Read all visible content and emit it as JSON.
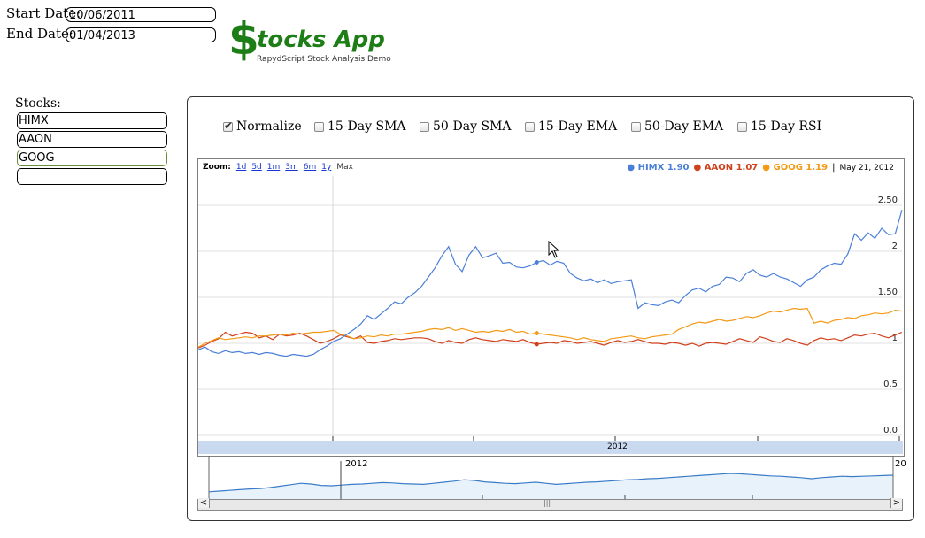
{
  "dates": {
    "start_label": "Start Date:",
    "start_value": "10/06/2011",
    "end_label": "End Date:",
    "end_value": "01/04/2013"
  },
  "logo": {
    "dollar": "$",
    "title": "tocks App",
    "subtitle": "RapydScript Stock Analysis Demo"
  },
  "stocks": {
    "label": "Stocks:",
    "inputs": [
      "HIMX",
      "AAON",
      "GOOG",
      ""
    ]
  },
  "options": [
    {
      "label": "Normalize",
      "checked": true
    },
    {
      "label": "15-Day SMA",
      "checked": false
    },
    {
      "label": "50-Day SMA",
      "checked": false
    },
    {
      "label": "15-Day EMA",
      "checked": false
    },
    {
      "label": "50-Day EMA",
      "checked": false
    },
    {
      "label": "15-Day RSI",
      "checked": false
    }
  ],
  "zoom": {
    "label": "Zoom:",
    "links": [
      "1d",
      "5d",
      "1m",
      "3m",
      "6m",
      "1y"
    ],
    "active": "Max"
  },
  "legend": {
    "items": [
      {
        "name": "HIMX",
        "value": "1.90",
        "color": "#4a7fd8"
      },
      {
        "name": "AAON",
        "value": "1.07",
        "color": "#d0401b"
      },
      {
        "name": "GOOG",
        "value": "1.19",
        "color": "#f29a15"
      }
    ],
    "separator": "|",
    "date": "May 21, 2012"
  },
  "range_bar": {
    "year_label": "2012",
    "nav_year_label": "2012",
    "nav_year_label_right": "20",
    "scroll_left": "<",
    "scroll_right": ">",
    "grip": "|||"
  },
  "chart_data": {
    "type": "line",
    "y_ticks": [
      "2.50",
      "2",
      "1.50",
      "1",
      "0.5",
      "0.0"
    ],
    "ylim": [
      0,
      2.5
    ],
    "x_label": "2012",
    "series": [
      {
        "name": "HIMX",
        "color": "#4a7fd8",
        "values": [
          0.93,
          0.96,
          0.91,
          0.89,
          0.92,
          0.9,
          0.91,
          0.89,
          0.9,
          0.88,
          0.9,
          0.89,
          0.87,
          0.86,
          0.88,
          0.87,
          0.86,
          0.88,
          0.93,
          0.97,
          1.02,
          1.05,
          1.1,
          1.15,
          1.21,
          1.3,
          1.26,
          1.32,
          1.38,
          1.45,
          1.43,
          1.5,
          1.55,
          1.62,
          1.72,
          1.82,
          1.95,
          2.05,
          1.86,
          1.78,
          1.96,
          2.05,
          1.93,
          1.95,
          1.98,
          1.87,
          1.88,
          1.83,
          1.82,
          1.84,
          1.88,
          1.9,
          1.85,
          1.89,
          1.87,
          1.76,
          1.71,
          1.68,
          1.7,
          1.66,
          1.69,
          1.65,
          1.67,
          1.68,
          1.69,
          1.38,
          1.44,
          1.42,
          1.41,
          1.45,
          1.47,
          1.44,
          1.52,
          1.58,
          1.6,
          1.56,
          1.62,
          1.64,
          1.72,
          1.71,
          1.67,
          1.76,
          1.8,
          1.74,
          1.72,
          1.76,
          1.72,
          1.7,
          1.66,
          1.62,
          1.69,
          1.72,
          1.8,
          1.84,
          1.87,
          1.86,
          1.97,
          2.19,
          2.12,
          2.2,
          2.14,
          2.25,
          2.18,
          2.19,
          2.45
        ]
      },
      {
        "name": "AAON",
        "color": "#d0401b",
        "values": [
          0.95,
          0.98,
          1.02,
          1.05,
          1.12,
          1.08,
          1.1,
          1.12,
          1.11,
          1.06,
          1.08,
          1.04,
          1.1,
          1.08,
          1.09,
          1.11,
          1.08,
          1.04,
          1.0,
          1.02,
          1.05,
          1.09,
          1.07,
          1.05,
          1.08,
          1.01,
          1.0,
          1.02,
          1.03,
          1.05,
          1.04,
          1.05,
          1.06,
          1.06,
          1.05,
          1.02,
          1.0,
          1.03,
          1.01,
          1.0,
          1.04,
          1.06,
          1.04,
          1.03,
          1.02,
          1.04,
          1.03,
          1.02,
          1.04,
          1.01,
          0.99,
          1.0,
          1.01,
          1.0,
          1.03,
          1.02,
          1.0,
          1.01,
          1.02,
          1.0,
          0.98,
          1.01,
          1.03,
          1.01,
          1.02,
          1.04,
          1.02,
          1.0,
          1.0,
          0.99,
          1.01,
          1.0,
          0.98,
          1.0,
          0.97,
          1.0,
          1.01,
          1.0,
          0.99,
          1.02,
          1.05,
          1.03,
          1.01,
          1.07,
          1.05,
          1.02,
          1.01,
          1.05,
          1.03,
          1.0,
          0.98,
          1.03,
          1.06,
          1.04,
          1.05,
          1.03,
          1.06,
          1.09,
          1.08,
          1.1,
          1.11,
          1.08,
          1.06,
          1.09,
          1.12
        ]
      },
      {
        "name": "GOOG",
        "color": "#f29a15",
        "values": [
          0.96,
          1.0,
          1.03,
          1.06,
          1.04,
          1.05,
          1.06,
          1.07,
          1.06,
          1.08,
          1.08,
          1.09,
          1.1,
          1.09,
          1.11,
          1.1,
          1.11,
          1.12,
          1.12,
          1.13,
          1.14,
          1.1,
          1.08,
          1.05,
          1.06,
          1.08,
          1.07,
          1.09,
          1.08,
          1.1,
          1.1,
          1.11,
          1.12,
          1.13,
          1.15,
          1.16,
          1.15,
          1.17,
          1.14,
          1.16,
          1.14,
          1.12,
          1.13,
          1.12,
          1.14,
          1.13,
          1.15,
          1.12,
          1.13,
          1.1,
          1.11,
          1.1,
          1.09,
          1.08,
          1.07,
          1.06,
          1.04,
          1.06,
          1.04,
          1.03,
          1.02,
          1.05,
          1.06,
          1.07,
          1.08,
          1.06,
          1.05,
          1.07,
          1.08,
          1.09,
          1.1,
          1.15,
          1.18,
          1.21,
          1.23,
          1.22,
          1.24,
          1.26,
          1.24,
          1.25,
          1.27,
          1.29,
          1.28,
          1.3,
          1.33,
          1.35,
          1.34,
          1.36,
          1.38,
          1.37,
          1.38,
          1.22,
          1.24,
          1.22,
          1.25,
          1.26,
          1.28,
          1.27,
          1.3,
          1.31,
          1.33,
          1.32,
          1.33,
          1.36,
          1.35
        ]
      }
    ],
    "navigator_values": [
      0.78,
      0.8,
      0.82,
      0.84,
      0.86,
      0.87,
      0.9,
      0.94,
      0.98,
      1.02,
      1.0,
      0.96,
      0.95,
      0.97,
      0.99,
      1.0,
      1.02,
      1.04,
      1.03,
      1.01,
      1.0,
      0.99,
      1.02,
      1.05,
      1.08,
      1.12,
      1.1,
      1.06,
      1.04,
      1.02,
      1.01,
      1.03,
      1.05,
      1.02,
      0.99,
      1.01,
      1.03,
      1.05,
      1.06,
      1.08,
      1.1,
      1.12,
      1.13,
      1.15,
      1.16,
      1.18,
      1.2,
      1.22,
      1.24,
      1.26,
      1.28,
      1.3,
      1.29,
      1.27,
      1.25,
      1.23,
      1.22,
      1.2,
      1.18,
      1.15,
      1.18,
      1.2,
      1.22,
      1.21,
      1.22,
      1.23,
      1.24,
      1.25
    ]
  }
}
